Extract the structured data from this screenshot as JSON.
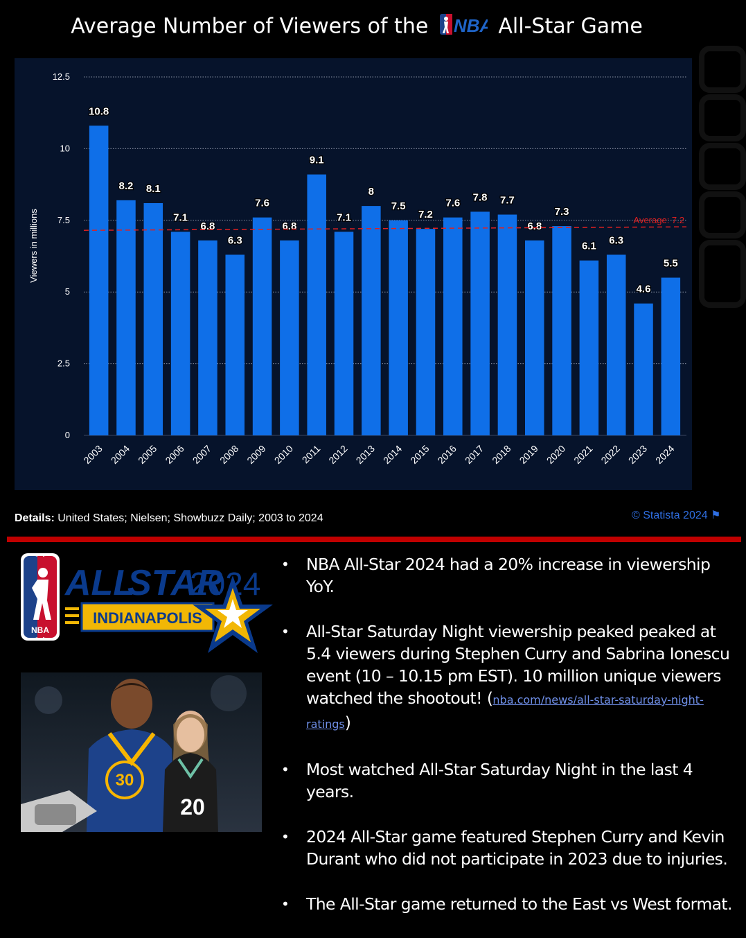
{
  "title": {
    "before": "Average Number of Viewers of the",
    "logo_text": "NBA",
    "after": "All-Star Game"
  },
  "chart_data": {
    "type": "bar",
    "categories": [
      "2003",
      "2004",
      "2005",
      "2006",
      "2007",
      "2008",
      "2009",
      "2010",
      "2011",
      "2012",
      "2013",
      "2014",
      "2015",
      "2016",
      "2017",
      "2018",
      "2019",
      "2020",
      "2021",
      "2022",
      "2023",
      "2024"
    ],
    "values": [
      10.8,
      8.2,
      8.1,
      7.1,
      6.8,
      6.3,
      7.6,
      6.8,
      9.1,
      7.1,
      8,
      7.5,
      7.2,
      7.6,
      7.8,
      7.7,
      6.8,
      7.3,
      6.1,
      6.3,
      4.6,
      5.5
    ],
    "value_labels": [
      "10.8",
      "8.2",
      "8.1",
      "7.1",
      "6.8",
      "6.3",
      "7.6",
      "6.8",
      "9.1",
      "7.1",
      "8",
      "7.5",
      "7.2",
      "7.6",
      "7.8",
      "7.7",
      "6.8",
      "7.3",
      "6.1",
      "6.3",
      "4.6",
      "5.5"
    ],
    "ylabel": "Viewers in millions",
    "ylim": [
      0,
      12.5
    ],
    "yticks": [
      0,
      2.5,
      5,
      7.5,
      10,
      12.5
    ],
    "ytick_labels": [
      "0",
      "2.5",
      "5",
      "7.5",
      "10",
      "12.5"
    ],
    "grid": true,
    "bar_color": "#0f6fe8",
    "average": {
      "value": 7.2,
      "label": "Average: 7.2",
      "color": "#e02020"
    }
  },
  "details": {
    "label": "Details:",
    "text": "United States; Nielsen; Showbuzz Daily; 2003 to 2024"
  },
  "credit": "© Statista 2024",
  "credit_icon": "flag-icon",
  "allstar_logo": {
    "allstar": "ALL",
    "star": "STAR",
    "year": "2024",
    "city": "INDIANAPOLIS",
    "badge": "NBA"
  },
  "photo": {
    "jersey_left": "30",
    "jersey_right": "20"
  },
  "bullets": [
    {
      "text": "NBA All-Star 2024 had a 20% increase in viewership YoY."
    },
    {
      "text": "All-Star Saturday Night viewership peaked peaked at 5.4 viewers during Stephen Curry and Sabrina Ionescu event (10 – 10.15 pm EST). 10 million unique viewers watched the shootout! (",
      "link": "nba.com/news/all-star-saturday-night-ratings",
      "after": ")"
    },
    {
      "text": "Most watched All-Star Saturday Night in the last 4 years."
    },
    {
      "text": "2024 All-Star game featured Stephen Curry and Kevin Durant who did not participate in 2023 due to injuries."
    },
    {
      "text": "The All-Star game returned to the East vs West format."
    }
  ],
  "bullet_char": "•"
}
